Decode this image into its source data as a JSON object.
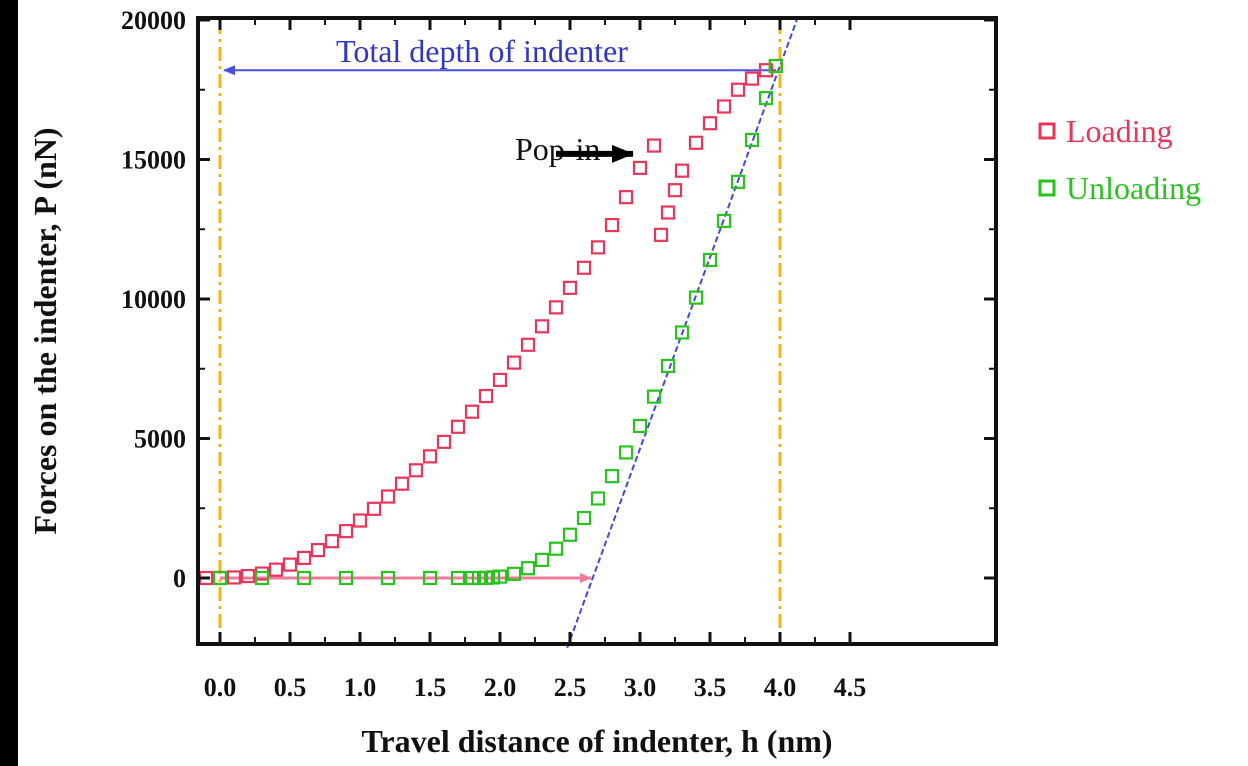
{
  "chart_data": {
    "type": "scatter",
    "title": "",
    "xlabel": "Travel distance of indenter,  h (nm)",
    "ylabel": "Forces on the indenter,  P (nN)",
    "xlim": [
      -0.1,
      4.5
    ],
    "ylim": [
      -2500,
      20000
    ],
    "xticks": [
      0.0,
      0.5,
      1.0,
      1.5,
      2.0,
      2.5,
      3.0,
      3.5,
      4.0,
      4.5
    ],
    "xtick_labels": [
      "0.0",
      "0.5",
      "1.0",
      "1.5",
      "2.0",
      "2.5",
      "3.0",
      "3.5",
      "4.0",
      "4.5"
    ],
    "yticks": [
      0,
      5000,
      10000,
      15000,
      20000
    ],
    "ytick_labels": [
      "0",
      "5000",
      "10000",
      "15000",
      "20000"
    ],
    "legend_position": "right",
    "series": [
      {
        "name": "Loading",
        "color": "#e8365a",
        "marker": "square-open",
        "x": [
          -0.1,
          0.0,
          0.1,
          0.2,
          0.3,
          0.4,
          0.5,
          0.6,
          0.7,
          0.8,
          0.9,
          1.0,
          1.1,
          1.2,
          1.3,
          1.4,
          1.5,
          1.6,
          1.7,
          1.8,
          1.9,
          2.0,
          2.1,
          2.2,
          2.3,
          2.4,
          2.5,
          2.6,
          2.7,
          2.8,
          2.9,
          3.0,
          3.1,
          3.15,
          3.2,
          3.25,
          3.3,
          3.4,
          3.5,
          3.6,
          3.7,
          3.8,
          3.9,
          3.97
        ],
        "y": [
          0,
          0,
          20,
          70,
          160,
          300,
          480,
          720,
          1000,
          1320,
          1680,
          2060,
          2480,
          2920,
          3380,
          3860,
          4360,
          4880,
          5420,
          5960,
          6520,
          7100,
          7720,
          8360,
          9020,
          9700,
          10400,
          11120,
          11850,
          12650,
          13650,
          14700,
          15500,
          12300,
          13100,
          13900,
          14600,
          15600,
          16300,
          16900,
          17500,
          17900,
          18200,
          18350
        ]
      },
      {
        "name": "Unloading",
        "color": "#29c21f",
        "marker": "square-open",
        "x": [
          3.97,
          3.9,
          3.8,
          3.7,
          3.6,
          3.5,
          3.4,
          3.3,
          3.2,
          3.1,
          3.0,
          2.9,
          2.8,
          2.7,
          2.6,
          2.5,
          2.4,
          2.3,
          2.2,
          2.1,
          2.0,
          1.95,
          1.9,
          1.85,
          1.8,
          1.7,
          1.5,
          1.2,
          0.9,
          0.6,
          0.3,
          0.0
        ],
        "y": [
          18350,
          17200,
          15700,
          14200,
          12800,
          11400,
          10050,
          8800,
          7600,
          6500,
          5450,
          4500,
          3650,
          2850,
          2150,
          1550,
          1050,
          650,
          350,
          150,
          50,
          20,
          5,
          0,
          0,
          0,
          0,
          0,
          0,
          0,
          0,
          0
        ]
      }
    ],
    "annotations": {
      "total_depth_label": "Total depth of indenter",
      "pop_in_label": "Pop-in",
      "total_depth_arrow": {
        "x_from": 3.97,
        "x_to": 0.0,
        "y": 18200
      },
      "pop_in_arrow": {
        "x_from": 2.4,
        "x_to": 2.95,
        "y": 15200
      },
      "residual_depth_arrow": {
        "x_from": 0.0,
        "x_to": 2.65,
        "y": 0
      },
      "tangent_line": {
        "x1": 2.48,
        "y1": -2500,
        "x2": 4.12,
        "y2": 20000
      },
      "vertical_lines": [
        0.0,
        4.0
      ]
    },
    "colors": {
      "depth_arrow": "#4a4fe0",
      "tangent": "#3d4cd6",
      "residual_arrow": "#f07a9a",
      "vertical_lines": "#f5b51a",
      "pop_in_arrow": "#000000"
    }
  }
}
